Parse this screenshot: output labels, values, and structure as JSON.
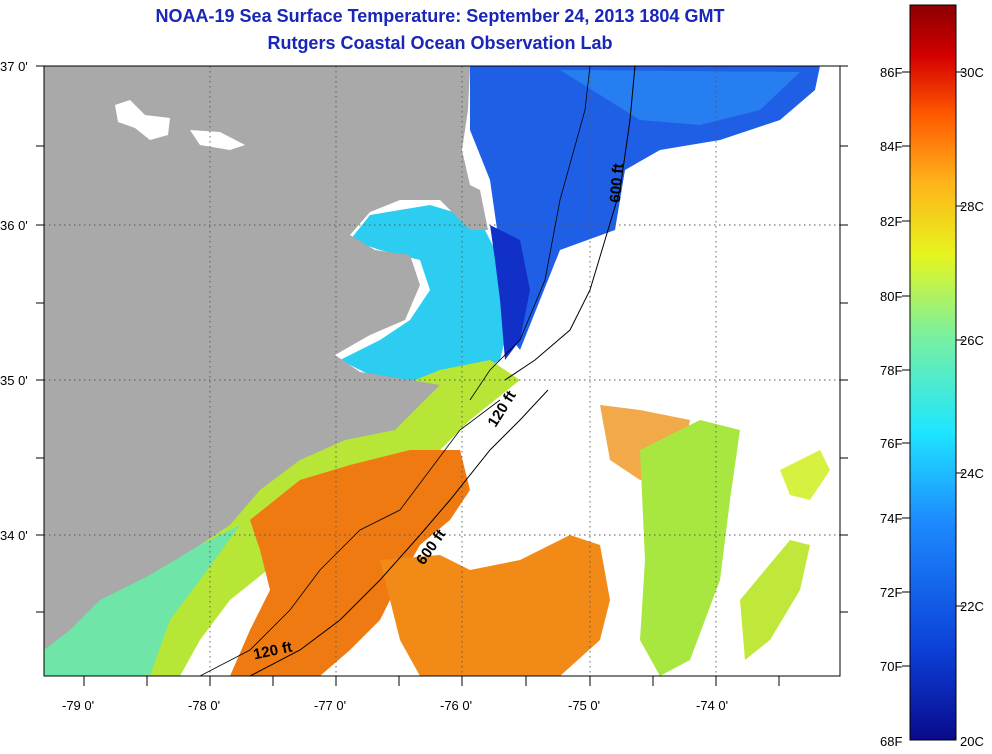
{
  "header": {
    "title": "NOAA-19 Sea Surface Temperature:  September 24, 2013 1804 GMT",
    "subtitle": "Rutgers Coastal Ocean Observation Lab"
  },
  "map": {
    "lat_labels": [
      "37 0'",
      "36 0'",
      "35 0'",
      "34 0'"
    ],
    "lon_labels": [
      "-79 0'",
      "-78 0'",
      "-77 0'",
      "-76 0'",
      "-75 0'",
      "-74 0'"
    ],
    "isobath_labels": [
      "600 ft",
      "120 ft",
      "600 ft",
      "120 ft"
    ],
    "colors": {
      "land": "#a9a9a9",
      "no_data": "#ffffff",
      "grid": "#555555"
    }
  },
  "colorbar": {
    "fahrenheit_labels": [
      "86F",
      "84F",
      "82F",
      "80F",
      "78F",
      "76F",
      "74F",
      "72F",
      "70F",
      "68F"
    ],
    "celsius_labels": [
      "30C",
      "28C",
      "26C",
      "24C",
      "22C",
      "20C"
    ],
    "colors": [
      "#0a0a8c",
      "#0b3fd6",
      "#1e8cff",
      "#1ee6ff",
      "#7af0a0",
      "#e6f51e",
      "#ffb21a",
      "#ff5a00",
      "#d40000",
      "#8c0000"
    ]
  }
}
